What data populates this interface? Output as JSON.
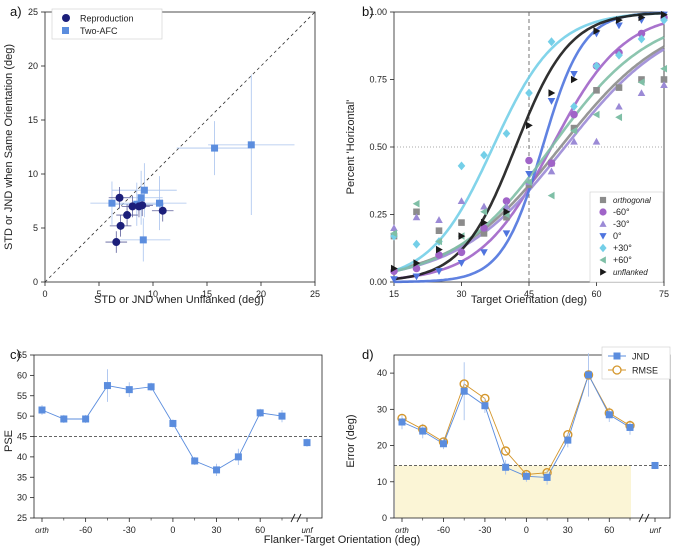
{
  "figure": {
    "bottom_xlabel": "Flanker-Target Orientation (deg)"
  },
  "colors": {
    "reproduction": "#1c1f7a",
    "twoafc": "#5b8dde",
    "rmse": "#d4962b",
    "orthogonal": "#8c8c8c",
    "m60": "#a064c8",
    "m30": "#9b8ad6",
    "zero": "#4f74de",
    "p30": "#74cfe8",
    "p60": "#7fbfa6",
    "unflanked": "#1a1a1a",
    "shade": "#fbf5d6"
  },
  "chart_data": [
    {
      "panel": "a)",
      "type": "scatter",
      "xlabel": "STD or JND when Unflanked (deg)",
      "ylabel": "STD or JND when Same Orientation (deg)",
      "xlim": [
        0,
        25
      ],
      "ylim": [
        0,
        25
      ],
      "xticks": [
        0,
        5,
        10,
        15,
        20,
        25
      ],
      "yticks": [
        0,
        5,
        10,
        15,
        20,
        25
      ],
      "legend": [
        "Reproduction",
        "Two-AFC"
      ],
      "series": [
        {
          "name": "Reproduction",
          "marker": "circle",
          "points": [
            [
              6.6,
              3.7
            ],
            [
              7.0,
              5.2
            ],
            [
              6.9,
              7.8
            ],
            [
              7.6,
              6.2
            ],
            [
              8.1,
              7.0
            ],
            [
              8.7,
              7.0
            ],
            [
              9.0,
              7.1
            ],
            [
              10.9,
              6.6
            ]
          ],
          "xerr": [
            1.0,
            1.0,
            1.0,
            1.0,
            1.0,
            1.0,
            1.0,
            1.0
          ],
          "yerr": [
            1.0,
            1.0,
            1.0,
            1.0,
            1.0,
            1.0,
            1.0,
            1.0
          ]
        },
        {
          "name": "Two-AFC",
          "marker": "square",
          "points": [
            [
              6.2,
              7.3
            ],
            [
              8.5,
              7.2
            ],
            [
              8.9,
              7.8
            ],
            [
              9.2,
              8.5
            ],
            [
              9.1,
              3.9
            ],
            [
              10.6,
              7.3
            ],
            [
              15.7,
              12.4
            ],
            [
              19.1,
              12.7
            ]
          ],
          "xerr": [
            2.0,
            2.5,
            2.0,
            3.0,
            2.5,
            2.5,
            3.5,
            4.0
          ],
          "yerr": [
            2.0,
            2.0,
            2.5,
            2.5,
            2.0,
            2.5,
            2.5,
            6.5
          ]
        }
      ]
    },
    {
      "panel": "b)",
      "type": "scatter",
      "xlabel": "Target Orientation (deg)",
      "ylabel": "Percent 'Horizontal'",
      "xlim": [
        15,
        75
      ],
      "ylim": [
        0,
        1
      ],
      "xticks": [
        15,
        30,
        45,
        60,
        75
      ],
      "ytick_labels": [
        "0.00",
        "0.25",
        "0.50",
        "0.75",
        "1.00"
      ],
      "yticks": [
        0,
        0.25,
        0.5,
        0.75,
        1.0
      ],
      "legend_position": "bottom-right",
      "series": [
        {
          "name": "orthogonal",
          "marker": "square",
          "italic": true,
          "x": [
            15,
            20,
            25,
            30,
            35,
            40,
            45,
            50,
            55,
            60,
            65,
            70,
            75
          ],
          "y": [
            0.17,
            0.26,
            0.19,
            0.22,
            0.18,
            0.24,
            0.36,
            0.44,
            0.57,
            0.71,
            0.72,
            0.75,
            0.75
          ],
          "fit": {
            "mu": 52,
            "s": 12
          }
        },
        {
          "name": "-60°",
          "marker": "circle",
          "italic": false,
          "x": [
            15,
            20,
            25,
            30,
            35,
            40,
            45,
            50,
            55,
            60,
            65,
            70,
            75
          ],
          "y": [
            0.04,
            0.05,
            0.1,
            0.11,
            0.2,
            0.3,
            0.45,
            0.44,
            0.62,
            0.8,
            0.85,
            0.92,
            0.98
          ],
          "fit": {
            "mu": 50,
            "s": 8
          }
        },
        {
          "name": "-30°",
          "marker": "triangle-up",
          "italic": false,
          "x": [
            15,
            20,
            25,
            30,
            35,
            40,
            45,
            50,
            55,
            60,
            65,
            70,
            75
          ],
          "y": [
            0.2,
            0.24,
            0.23,
            0.3,
            0.28,
            0.28,
            0.37,
            0.41,
            0.52,
            0.52,
            0.65,
            0.7,
            0.73
          ],
          "fit": {
            "mu": 53,
            "s": 12
          }
        },
        {
          "name": "0°",
          "marker": "triangle-down",
          "italic": false,
          "x": [
            15,
            20,
            25,
            30,
            35,
            40,
            45,
            50,
            55,
            60,
            65,
            70,
            75
          ],
          "y": [
            0.01,
            0.02,
            0.04,
            0.07,
            0.11,
            0.18,
            0.4,
            0.67,
            0.77,
            0.92,
            0.95,
            0.97,
            0.99
          ],
          "fit": {
            "mu": 48,
            "s": 4.5
          }
        },
        {
          "name": "+30°",
          "marker": "diamond",
          "italic": false,
          "x": [
            15,
            20,
            25,
            30,
            35,
            40,
            45,
            50,
            55,
            60,
            65,
            70,
            75
          ],
          "y": [
            0.17,
            0.14,
            0.15,
            0.43,
            0.47,
            0.55,
            0.7,
            0.89,
            0.65,
            0.8,
            0.84,
            0.9,
            0.97
          ],
          "fit": {
            "mu": 37,
            "s": 7
          }
        },
        {
          "name": "+60°",
          "marker": "triangle-left",
          "italic": false,
          "x": [
            15,
            20,
            25,
            30,
            35,
            40,
            45,
            50,
            55,
            60,
            65,
            70,
            75
          ],
          "y": [
            0.18,
            0.29,
            0.15,
            0.17,
            0.26,
            0.25,
            0.37,
            0.32,
            0.56,
            0.62,
            0.61,
            0.74,
            0.79
          ],
          "fit": {
            "mu": 50,
            "s": 11
          }
        },
        {
          "name": "unflanked",
          "marker": "triangle-right",
          "italic": true,
          "x": [
            15,
            20,
            25,
            30,
            35,
            40,
            45,
            50,
            55,
            60,
            65,
            70,
            75
          ],
          "y": [
            0.05,
            0.07,
            0.12,
            0.17,
            0.22,
            0.26,
            0.58,
            0.7,
            0.75,
            0.93,
            0.97,
            0.98,
            0.99
          ],
          "fit": {
            "mu": 42,
            "s": 6
          }
        }
      ],
      "refline_x": 45,
      "refline_y": 0.5
    },
    {
      "panel": "c)",
      "type": "line",
      "ylabel": "PSE",
      "ylim": [
        25,
        65
      ],
      "yticks": [
        25,
        30,
        35,
        40,
        45,
        50,
        55,
        60,
        65
      ],
      "xtick_labels": [
        "orth",
        "-60",
        "-30",
        "0",
        "30",
        "60",
        "unf"
      ],
      "refline_y": 45,
      "series": [
        {
          "name": "PSE",
          "marker": "square",
          "x": [
            -90,
            -75,
            -60,
            -45,
            -30,
            -15,
            0,
            15,
            30,
            45,
            60,
            75
          ],
          "y": [
            51.5,
            49.3,
            49.3,
            57.5,
            56.5,
            57.2,
            48.2,
            39.0,
            36.8,
            40.0,
            50.8,
            50.0
          ],
          "yerr": [
            1.2,
            1.0,
            1.0,
            4.0,
            1.8,
            1.0,
            1.0,
            1.0,
            1.5,
            2.0,
            1.0,
            1.5
          ]
        },
        {
          "name": "unf",
          "marker": "square",
          "x_label": "unf",
          "y": [
            43.5
          ],
          "yerr": [
            1.0
          ]
        }
      ]
    },
    {
      "panel": "d)",
      "type": "line",
      "ylabel": "Error (deg)",
      "ylim": [
        0,
        45
      ],
      "yticks": [
        0,
        10,
        20,
        30,
        40
      ],
      "xtick_labels": [
        "orth",
        "-60",
        "-30",
        "0",
        "30",
        "60",
        "unf"
      ],
      "refline_y": 14.5,
      "shade_below": 14.5,
      "legend": [
        "JND",
        "RMSE"
      ],
      "series": [
        {
          "name": "JND",
          "marker": "square",
          "x": [
            -90,
            -75,
            -60,
            -45,
            -30,
            -15,
            0,
            15,
            30,
            45,
            60,
            75
          ],
          "y": [
            26.5,
            24.0,
            20.5,
            35.0,
            31.0,
            14.0,
            11.5,
            11.2,
            21.5,
            39.5,
            28.5,
            25.0
          ],
          "yerr": [
            2.0,
            2.0,
            1.5,
            8.0,
            2.0,
            2.0,
            1.5,
            2.0,
            2.0,
            6.0,
            2.0,
            2.0
          ]
        },
        {
          "name": "RMSE",
          "marker": "circle-open",
          "x": [
            -90,
            -75,
            -60,
            -45,
            -30,
            -15,
            0,
            15,
            30,
            45,
            60,
            75
          ],
          "y": [
            27.5,
            24.5,
            21.0,
            37.0,
            33.0,
            18.5,
            12.0,
            12.5,
            23.0,
            39.5,
            29.0,
            25.5
          ]
        },
        {
          "name": "unf",
          "marker": "square",
          "x_label": "unf",
          "y": [
            14.5
          ],
          "yerr": [
            1.0
          ]
        }
      ]
    }
  ]
}
